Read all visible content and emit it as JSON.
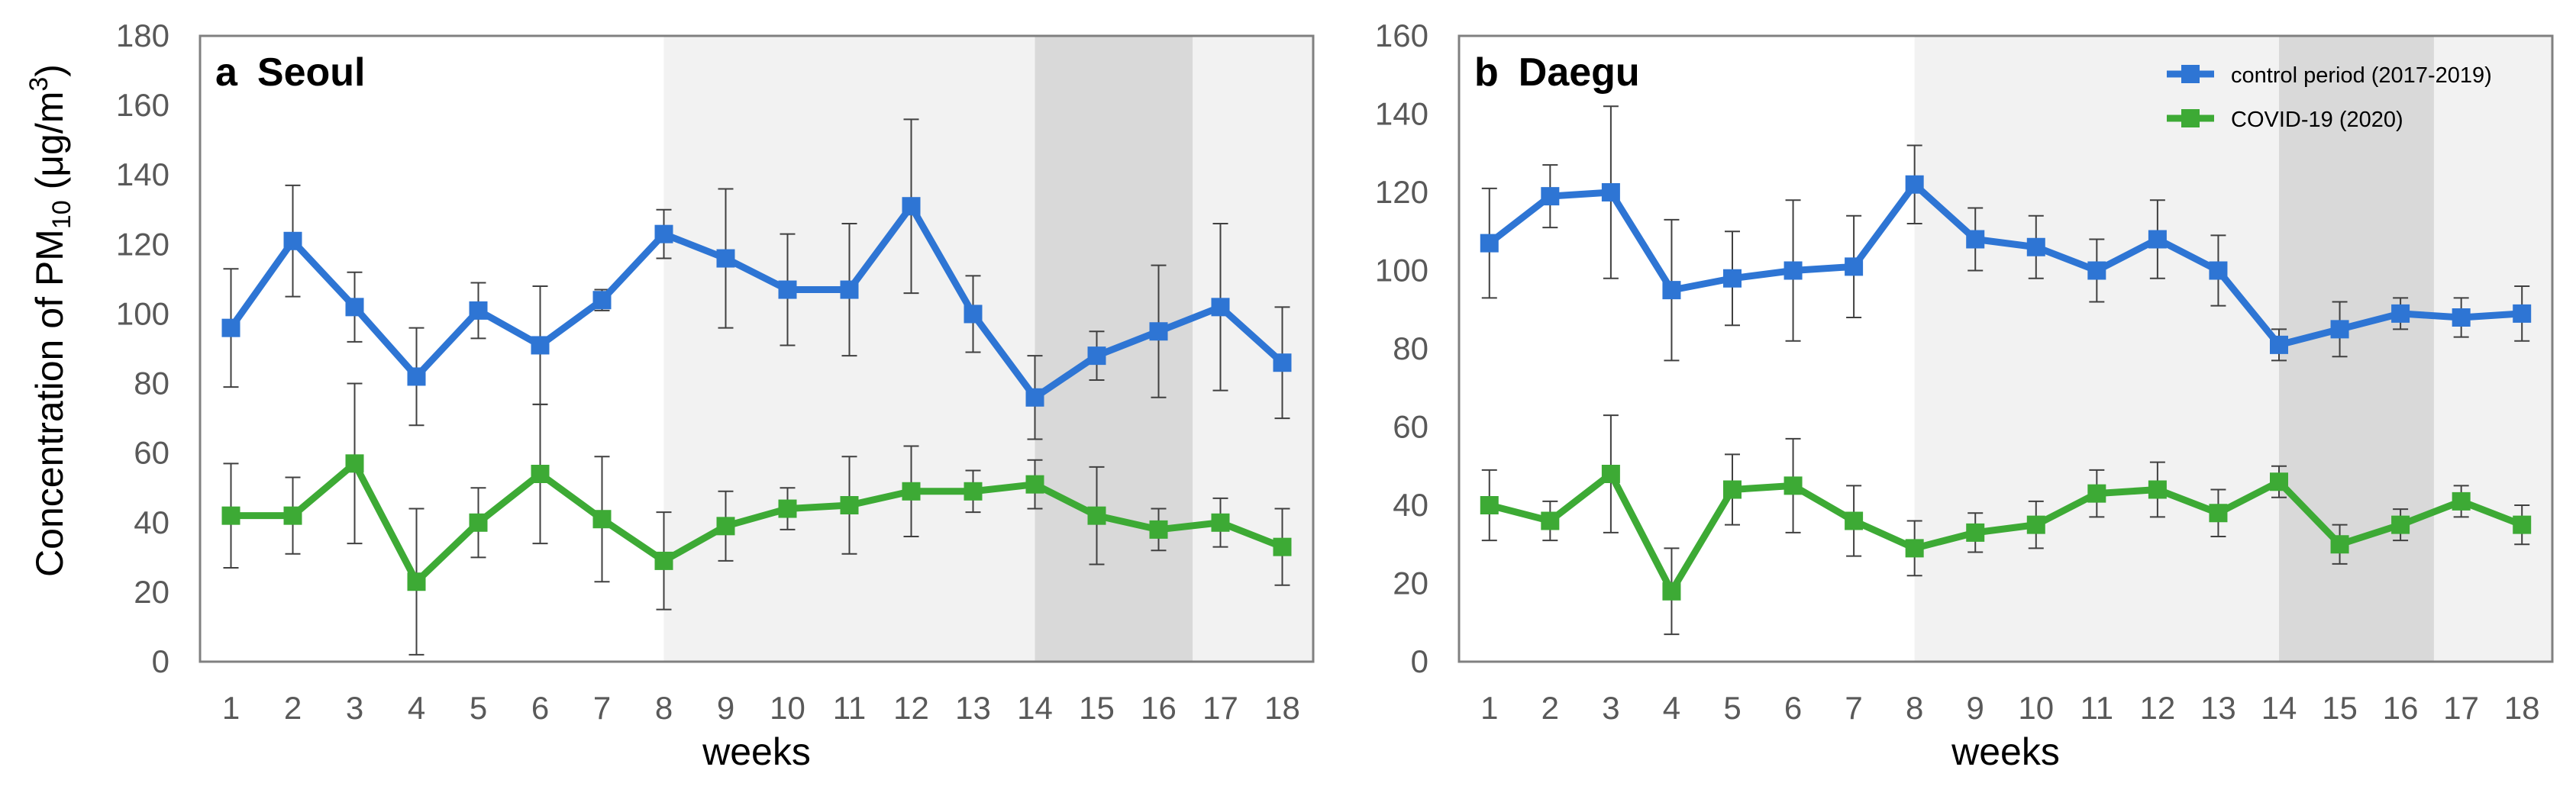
{
  "figure": {
    "ylabel": {
      "prefix": "Concentration of PM",
      "sub": "10",
      "mid": " (μg/m",
      "sup": "3",
      "suffix": ")"
    }
  },
  "legend": [
    {
      "name": "control period (2017-2019)",
      "color": "#2E75D4"
    },
    {
      "name": "COVID-19 (2020)",
      "color": "#3DAA35"
    }
  ],
  "colors": {
    "control": "#2E75D4",
    "covid": "#3DAA35",
    "shade_light": "#F2F2F2",
    "shade_dark": "#D9D9D9"
  },
  "chart_data": [
    {
      "type": "line",
      "panel_letter": "a",
      "title": "Seoul",
      "xlabel": "weeks",
      "categories": [
        "1",
        "2",
        "3",
        "4",
        "5",
        "6",
        "7",
        "8",
        "9",
        "10",
        "11",
        "12",
        "13",
        "14",
        "15",
        "16",
        "17",
        "18"
      ],
      "ylim": [
        0,
        180
      ],
      "yticks": [
        0,
        20,
        40,
        60,
        80,
        100,
        120,
        140,
        160,
        180
      ],
      "shaded_weeks": {
        "light": [
          8,
          18
        ],
        "dark": [
          14,
          16
        ]
      },
      "series": [
        {
          "name": "control period (2017-2019)",
          "values": [
            96,
            121,
            102,
            82,
            101,
            91,
            104,
            123,
            116,
            107,
            107,
            131,
            100,
            76,
            88,
            95,
            102,
            86
          ],
          "error": [
            17,
            16,
            10,
            14,
            8,
            17,
            3,
            7,
            20,
            16,
            19,
            25,
            11,
            12,
            7,
            19,
            24,
            16
          ]
        },
        {
          "name": "COVID-19 (2020)",
          "values": [
            42,
            42,
            57,
            23,
            40,
            54,
            41,
            29,
            39,
            44,
            45,
            49,
            49,
            51,
            42,
            38,
            40,
            33
          ],
          "error": [
            15,
            11,
            23,
            21,
            10,
            20,
            18,
            14,
            10,
            6,
            14,
            13,
            6,
            7,
            14,
            6,
            7,
            11
          ]
        }
      ]
    },
    {
      "type": "line",
      "panel_letter": "b",
      "title": "Daegu",
      "xlabel": "weeks",
      "categories": [
        "1",
        "2",
        "3",
        "4",
        "5",
        "6",
        "7",
        "8",
        "9",
        "10",
        "11",
        "12",
        "13",
        "14",
        "15",
        "16",
        "17",
        "18"
      ],
      "ylim": [
        0,
        160
      ],
      "yticks": [
        0,
        20,
        40,
        60,
        80,
        100,
        120,
        140,
        160
      ],
      "shaded_weeks": {
        "light": [
          8,
          18
        ],
        "dark": [
          14,
          16
        ]
      },
      "series": [
        {
          "name": "control period (2017-2019)",
          "values": [
            107,
            119,
            120,
            95,
            98,
            100,
            101,
            122,
            108,
            106,
            100,
            108,
            100,
            81,
            85,
            89,
            88,
            89
          ],
          "error": [
            14,
            8,
            22,
            18,
            12,
            18,
            13,
            10,
            8,
            8,
            8,
            10,
            9,
            4,
            7,
            4,
            5,
            7
          ]
        },
        {
          "name": "COVID-19 (2020)",
          "values": [
            40,
            36,
            48,
            18,
            44,
            45,
            36,
            29,
            33,
            35,
            43,
            44,
            38,
            46,
            30,
            35,
            41,
            35
          ],
          "error": [
            9,
            5,
            15,
            11,
            9,
            12,
            9,
            7,
            5,
            6,
            6,
            7,
            6,
            4,
            5,
            4,
            4,
            5
          ]
        }
      ]
    }
  ]
}
